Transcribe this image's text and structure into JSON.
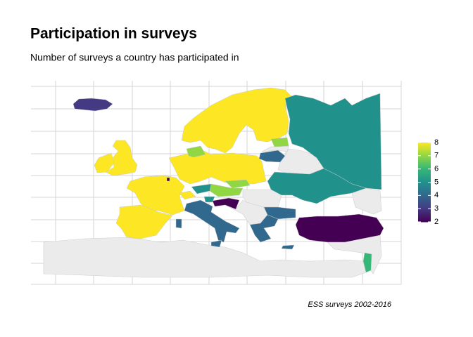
{
  "chart_data": {
    "type": "choropleth",
    "title": "Participation in surveys",
    "subtitle": "Number of surveys a country has participated in",
    "caption": "ESS surveys 2002-2016",
    "values": [
      3,
      8,
      5,
      7,
      4,
      5,
      4,
      8,
      8,
      8,
      8,
      8,
      7,
      8,
      7,
      7,
      5,
      5,
      2,
      4,
      4,
      4,
      4,
      2,
      4,
      6,
      2
    ],
    "colorbar": {
      "lim": [
        2,
        8
      ],
      "ticks": [
        2,
        3,
        4,
        5,
        6,
        7,
        8
      ],
      "colors": [
        "#440154",
        "#443983",
        "#31688e",
        "#21918c",
        "#35b779",
        "#90d743",
        "#fde725"
      ]
    }
  }
}
